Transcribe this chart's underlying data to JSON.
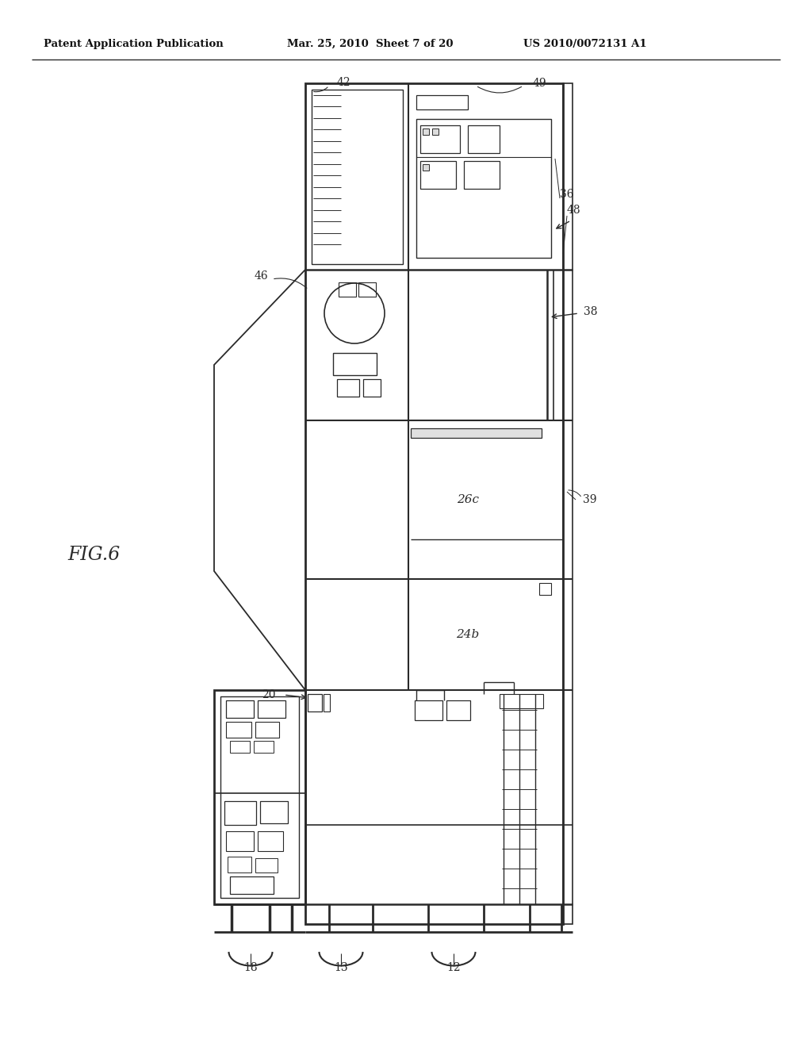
{
  "bg_color": "#ffffff",
  "line_color": "#2a2a2a",
  "header_left": "Patent Application Publication",
  "header_mid": "Mar. 25, 2010  Sheet 7 of 20",
  "header_right": "US 2010/0072131 A1",
  "fig_label": "FIG.6"
}
